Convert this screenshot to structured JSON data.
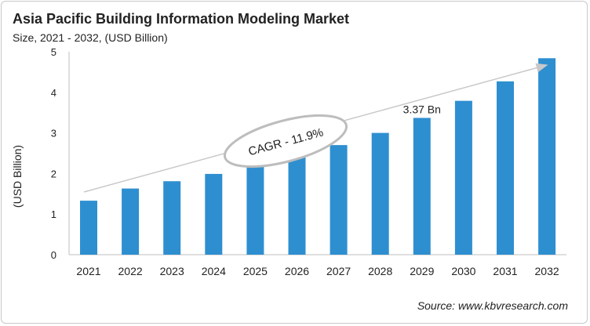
{
  "chart_data": {
    "type": "bar",
    "title": "Asia Pacific Building Information Modeling Market",
    "subtitle": "Size, 2021 - 2032, (USD Billion)",
    "xlabel": "",
    "ylabel": "(USD Billion)",
    "ylim": [
      0,
      5
    ],
    "yticks": [
      0,
      1,
      2,
      3,
      4,
      5
    ],
    "categories": [
      "2021",
      "2022",
      "2023",
      "2024",
      "2025",
      "2026",
      "2027",
      "2028",
      "2029",
      "2030",
      "2031",
      "2032"
    ],
    "values": [
      1.33,
      1.63,
      1.81,
      1.99,
      2.18,
      2.43,
      2.7,
      3.0,
      3.37,
      3.79,
      4.27,
      4.84
    ],
    "bar_color": "#2e8fd0",
    "grid": false,
    "annotations": {
      "data_label": {
        "category": "2029",
        "text": "3.37 Bn"
      },
      "cagr": "CAGR - 11.9%"
    },
    "source": "Source: www.kbvresearch.com"
  }
}
